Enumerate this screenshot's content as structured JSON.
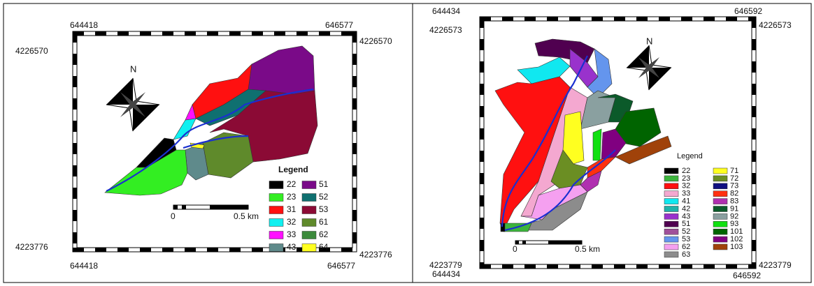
{
  "panels": [
    {
      "coords": {
        "top_left_x": "644418",
        "top_right_x": "646577",
        "left_top_y": "4226570",
        "right_top_y": "4226570",
        "left_bottom_y": "4223776",
        "right_bottom_y": "4223776",
        "bottom_left_x": "644418",
        "bottom_right_x": "646577"
      },
      "north": "N",
      "scale": {
        "start": "0",
        "end": "0.5 km"
      },
      "legend": {
        "title": "Legend",
        "items": [
          {
            "label": "22",
            "color": "#000000"
          },
          {
            "label": "23",
            "color": "#33ee22"
          },
          {
            "label": "31",
            "color": "#ff1010"
          },
          {
            "label": "32",
            "color": "#10f0f0"
          },
          {
            "label": "33",
            "color": "#ff10ff"
          },
          {
            "label": "43",
            "color": "#5f8a8b"
          },
          {
            "label": "51",
            "color": "#7a0a88"
          },
          {
            "label": "52",
            "color": "#0f7070"
          },
          {
            "label": "53",
            "color": "#8b0a35"
          },
          {
            "label": "61",
            "color": "#5f8a2b"
          },
          {
            "label": "62",
            "color": "#3c8a3c"
          },
          {
            "label": "64",
            "color": "#ffff20"
          }
        ]
      }
    },
    {
      "coords": {
        "top_left_x": "644434",
        "top_right_x": "646592",
        "left_top_y": "4226573",
        "right_top_y": "4226573",
        "left_bottom_y": "4223779",
        "right_bottom_y": "4223779",
        "bottom_left_x": "644434",
        "bottom_right_x": "646592"
      },
      "north": "N",
      "scale": {
        "start": "0",
        "end": "0.5 km"
      },
      "legend": {
        "title": "Legend",
        "items": [
          {
            "label": "22",
            "color": "#000000"
          },
          {
            "label": "23",
            "color": "#3cb43c"
          },
          {
            "label": "32",
            "color": "#ff1010"
          },
          {
            "label": "33",
            "color": "#f4a8d0"
          },
          {
            "label": "41",
            "color": "#10e8f0"
          },
          {
            "label": "42",
            "color": "#20b2aa"
          },
          {
            "label": "43",
            "color": "#9932cc"
          },
          {
            "label": "51",
            "color": "#500050"
          },
          {
            "label": "52",
            "color": "#a0509a"
          },
          {
            "label": "53",
            "color": "#6495ed"
          },
          {
            "label": "62",
            "color": "#f5a0f0"
          },
          {
            "label": "63",
            "color": "#8c8c8c"
          },
          {
            "label": "71",
            "color": "#ffff20"
          },
          {
            "label": "72",
            "color": "#6b8e23"
          },
          {
            "label": "73",
            "color": "#101080"
          },
          {
            "label": "82",
            "color": "#ff3010"
          },
          {
            "label": "83",
            "color": "#b030b0"
          },
          {
            "label": "91",
            "color": "#0b5a2a"
          },
          {
            "label": "92",
            "color": "#8aa0a0"
          },
          {
            "label": "93",
            "color": "#10e010"
          },
          {
            "label": "101",
            "color": "#006400"
          },
          {
            "label": "102",
            "color": "#800080"
          },
          {
            "label": "103",
            "color": "#a0420a"
          }
        ]
      }
    }
  ]
}
